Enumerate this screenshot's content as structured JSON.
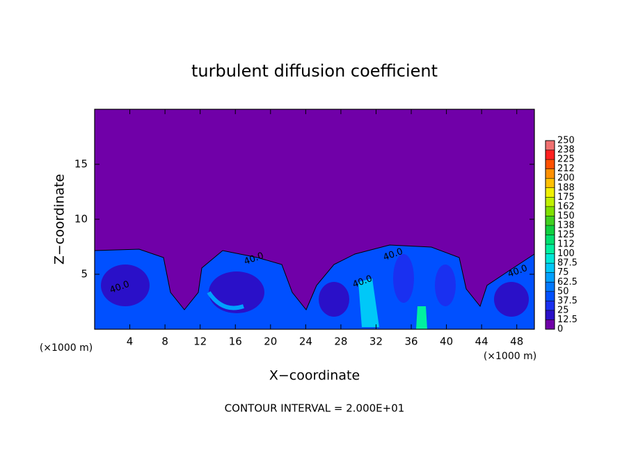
{
  "chart_data": {
    "type": "contour",
    "title": "turbulent diffusion coefficient",
    "x_label": "X−coordinate",
    "y_label": "Z−coordinate",
    "x_unit_labels": [
      "(×1000 m)",
      "(×1000 m)"
    ],
    "footer": "CONTOUR INTERVAL = 2.000E+01",
    "contour_labels": [
      "40.0",
      "40.0",
      "40.0",
      "40.0",
      "40.0"
    ],
    "xlim": [
      0,
      50
    ],
    "xticks": [
      4,
      8,
      12,
      16,
      20,
      24,
      28,
      32,
      36,
      40,
      44,
      48
    ],
    "ylim": [
      0,
      20
    ],
    "yticks": [
      5,
      10,
      15
    ],
    "colorbar": {
      "levels": [
        0,
        12.5,
        25,
        37.5,
        50,
        62.5,
        75,
        87.5,
        100,
        112,
        125,
        138,
        150,
        162,
        175,
        188,
        200,
        212,
        225,
        238,
        250
      ],
      "colors": [
        "#7000a8",
        "#2a10c8",
        "#1a30f0",
        "#0050ff",
        "#0078ff",
        "#00a0ff",
        "#00c8f8",
        "#00e8d8",
        "#00f0a0",
        "#00e070",
        "#10d040",
        "#40d020",
        "#80e000",
        "#c0f000",
        "#f0f000",
        "#ffc000",
        "#ff9000",
        "#ff5000",
        "#ff2020",
        "#f07070"
      ]
    }
  }
}
